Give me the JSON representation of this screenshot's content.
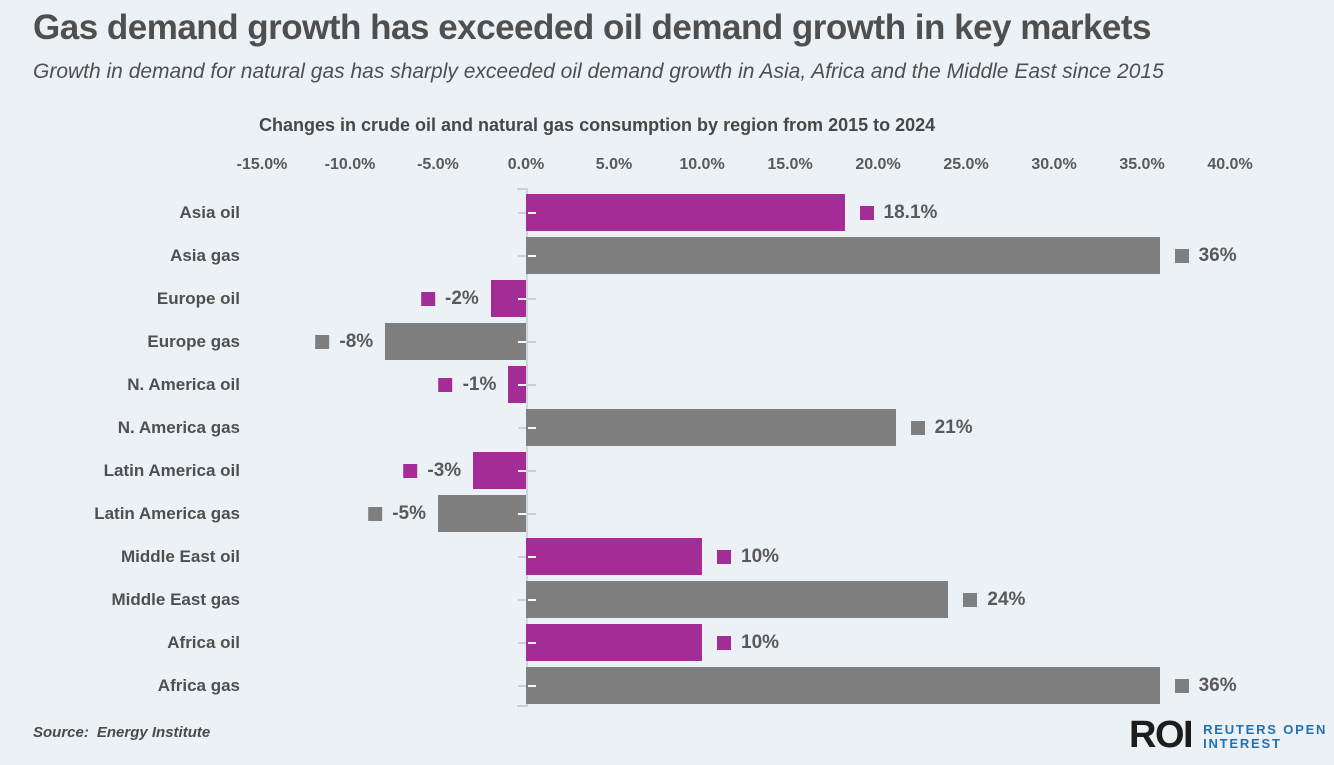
{
  "page": {
    "title": "Gas demand growth has exceeded oil demand growth in key markets",
    "subtitle": "Growth in demand for natural gas has sharply exceeded oil demand growth in Asia, Africa and the Middle East since 2015"
  },
  "source": {
    "label": "Source:",
    "value": "Energy Institute"
  },
  "logo": {
    "mark": "ROI",
    "line1": "REUTERS OPEN",
    "line2": "INTEREST"
  },
  "colors": {
    "oil": "#a32c96",
    "gas": "#7f7f7f",
    "background": "#ecf1f6",
    "axis_line": "#ccd4dc",
    "tick_gray": "#c7d0d9",
    "tick_white": "rgba(255,255,255,0.95)",
    "text_gray": "#595959",
    "logo_blue": "#2271b3"
  },
  "chart_data": {
    "type": "bar",
    "orientation": "horizontal",
    "title": "Changes in crude oil and natural gas consumption by region from 2015 to 2024",
    "categories": [
      "Asia oil",
      "Asia gas",
      "Europe oil",
      "Europe gas",
      "N. America oil",
      "N. America gas",
      "Latin America oil",
      "Latin America gas",
      "Middle East oil",
      "Middle East gas",
      "Africa oil",
      "Africa gas"
    ],
    "values": [
      18.1,
      36,
      -2,
      -8,
      -1,
      21,
      -3,
      -5,
      10,
      24,
      10,
      36
    ],
    "value_labels": [
      "18.1%",
      "36%",
      "-2%",
      "-8%",
      "-1%",
      "21%",
      "-3%",
      "-5%",
      "10%",
      "24%",
      "10%",
      "36%"
    ],
    "series": [
      {
        "name": "oil",
        "color": "#a32c96"
      },
      {
        "name": "gas",
        "color": "#7f7f7f"
      }
    ],
    "xlim": [
      -15,
      40
    ],
    "x_tick_values": [
      -15,
      -10,
      -5,
      0,
      5,
      10,
      15,
      20,
      25,
      30,
      35,
      40
    ],
    "x_tick_labels": [
      "-15.0%",
      "-10.0%",
      "-5.0%",
      "0.0%",
      "5.0%",
      "10.0%",
      "15.0%",
      "20.0%",
      "25.0%",
      "30.0%",
      "35.0%",
      "40.0%"
    ],
    "grid": false,
    "legend": "inline value swatches matching bar color"
  }
}
